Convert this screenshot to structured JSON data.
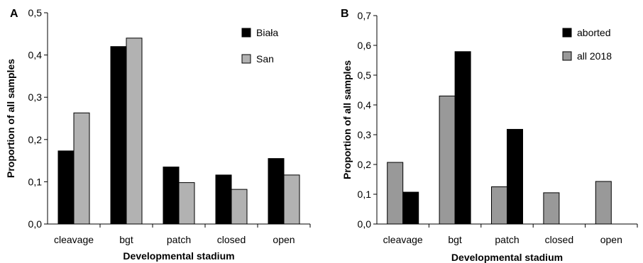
{
  "chart_data": [
    {
      "type": "bar",
      "panel_label": "A",
      "categories": [
        "cleavage",
        "bgt",
        "patch",
        "closed",
        "open"
      ],
      "series": [
        {
          "name": "Biała",
          "color": "#000000",
          "values": [
            0.173,
            0.42,
            0.135,
            0.116,
            0.155
          ]
        },
        {
          "name": "San",
          "color": "#b2b2b2",
          "values": [
            0.263,
            0.44,
            0.098,
            0.082,
            0.116
          ]
        }
      ],
      "xlabel": "Developmental stadium",
      "ylabel": "Proportion of all samples",
      "ylim": [
        0,
        0.5
      ],
      "yticks": [
        "0,0",
        "0,1",
        "0,2",
        "0,3",
        "0,4",
        "0,5"
      ],
      "legend_position": "top-right",
      "grid": false
    },
    {
      "type": "bar",
      "panel_label": "B",
      "categories": [
        "cleavage",
        "bgt",
        "patch",
        "closed",
        "open"
      ],
      "series": [
        {
          "name": "all 2018",
          "color": "#999999",
          "values": [
            0.207,
            0.43,
            0.125,
            0.105,
            0.143
          ]
        },
        {
          "name": "aborted",
          "color": "#000000",
          "values": [
            0.107,
            0.579,
            0.318,
            0,
            0
          ]
        }
      ],
      "legend_order": [
        "aborted",
        "all 2018"
      ],
      "xlabel": "Developmental stadium",
      "ylabel": "Proportion of all samples",
      "ylim": [
        0,
        0.7
      ],
      "yticks": [
        "0,0",
        "0,1",
        "0,2",
        "0,3",
        "0,4",
        "0,5",
        "0,6",
        "0,7"
      ],
      "legend_position": "top-right",
      "grid": false
    }
  ]
}
